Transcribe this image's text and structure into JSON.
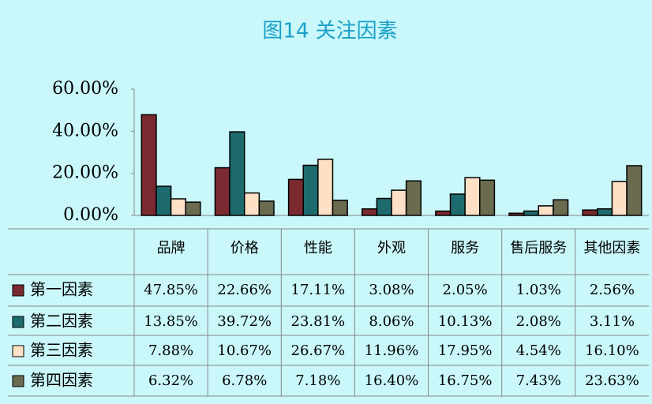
{
  "chart_data": {
    "type": "bar",
    "title": "图14 关注因素",
    "categories": [
      "品牌",
      "价格",
      "性能",
      "外观",
      "服务",
      "售后服务",
      "其他因素"
    ],
    "series": [
      {
        "name": "第一因素",
        "color": "#7a2a30",
        "values": [
          47.85,
          22.66,
          17.11,
          3.08,
          2.05,
          1.03,
          2.56
        ],
        "value_labels": [
          "47.85%",
          "22.66%",
          "17.11%",
          "3.08%",
          "2.05%",
          "1.03%",
          "2.56%"
        ]
      },
      {
        "name": "第二因素",
        "color": "#1d6b6e",
        "values": [
          13.85,
          39.72,
          23.81,
          8.06,
          10.13,
          2.08,
          3.11
        ],
        "value_labels": [
          "13.85%",
          "39.72%",
          "23.81%",
          "8.06%",
          "10.13%",
          "2.08%",
          "3.11%"
        ]
      },
      {
        "name": "第三因素",
        "color": "#fde0c5",
        "values": [
          7.88,
          10.67,
          26.67,
          11.96,
          17.95,
          4.54,
          16.1
        ],
        "value_labels": [
          "7.88%",
          "10.67%",
          "26.67%",
          "11.96%",
          "17.95%",
          "4.54%",
          "16.10%"
        ]
      },
      {
        "name": "第四因素",
        "color": "#6b6b50",
        "values": [
          6.32,
          6.78,
          7.18,
          16.4,
          16.75,
          7.43,
          23.63
        ],
        "value_labels": [
          "6.32%",
          "6.78%",
          "7.18%",
          "16.40%",
          "16.75%",
          "7.43%",
          "23.63%"
        ]
      }
    ],
    "ylim": [
      0,
      60
    ],
    "yticks": [
      {
        "value": 0,
        "label": "0.00%"
      },
      {
        "value": 20,
        "label": "20.00%"
      },
      {
        "value": 40,
        "label": "40.00%"
      },
      {
        "value": 60,
        "label": "60.00%"
      }
    ]
  }
}
